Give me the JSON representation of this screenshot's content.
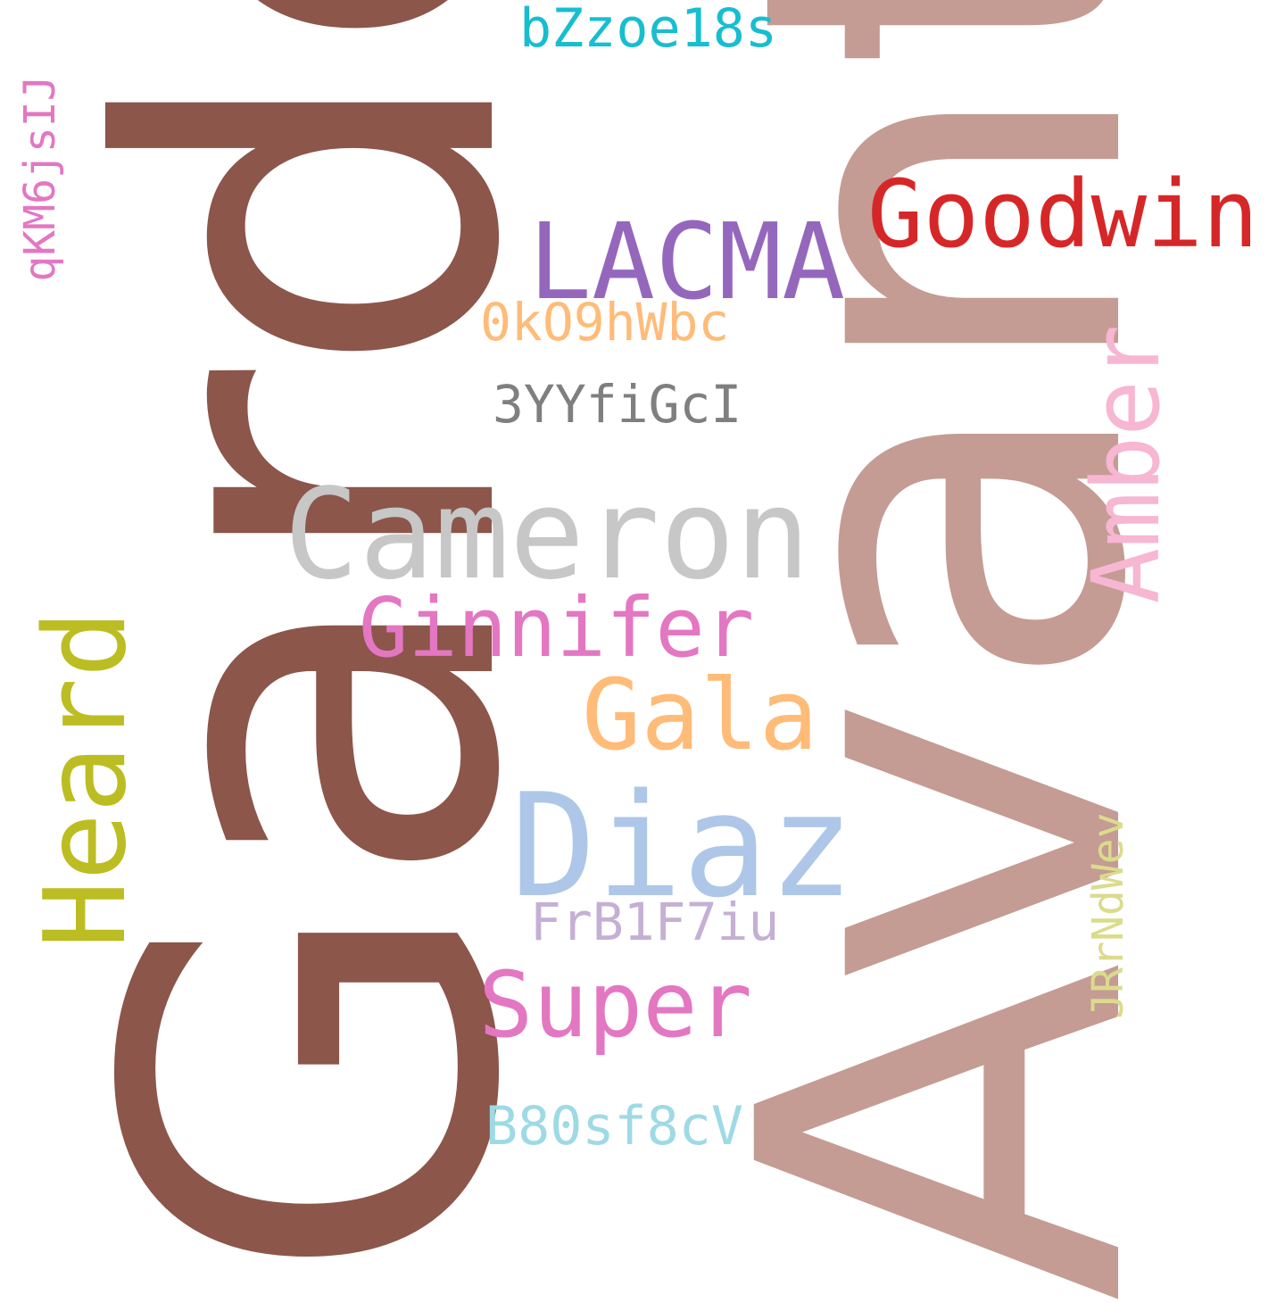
{
  "words": [
    {
      "text": "Garde",
      "color": "#8c564b"
    },
    {
      "text": "Avant",
      "color": "#c49c94"
    },
    {
      "text": "Cameron",
      "color": "#c7c7c7"
    },
    {
      "text": "Goodwin",
      "color": "#d62728"
    },
    {
      "text": "LACMA",
      "color": "#9467bd"
    },
    {
      "text": "Amber",
      "color": "#f7b6d2"
    },
    {
      "text": "Heard",
      "color": "#bcbd22"
    },
    {
      "text": "Ginnifer",
      "color": "#e377c2"
    },
    {
      "text": "Gala",
      "color": "#ffbb78"
    },
    {
      "text": "Diaz",
      "color": "#aec7e8"
    },
    {
      "text": "Super",
      "color": "#e377c2"
    },
    {
      "text": "bZzoe18s",
      "color": "#17becf"
    },
    {
      "text": "qKM6jsIJ",
      "color": "#e377c2"
    },
    {
      "text": "0kO9hWbc",
      "color": "#ffbb78"
    },
    {
      "text": "3YYfiGcI",
      "color": "#7f7f7f"
    },
    {
      "text": "FrB1F7iu",
      "color": "#c5b0d5"
    },
    {
      "text": "JRrNdWev",
      "color": "#dbdb8d"
    },
    {
      "text": "B80sf8cV",
      "color": "#9edae5"
    }
  ]
}
